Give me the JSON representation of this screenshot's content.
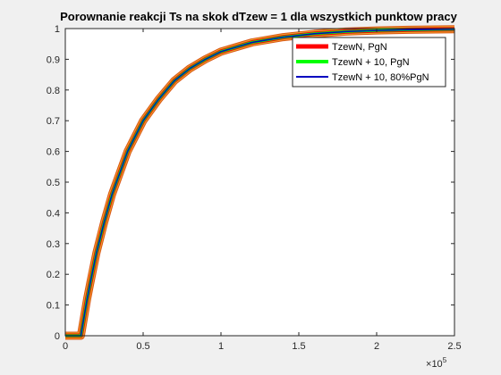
{
  "chart_data": {
    "type": "line",
    "title": "Porownanie reakcji Ts na skok dTzew = 1 dla wszystkich punktow pracy",
    "xlabel": "",
    "ylabel": "",
    "x_exponent_label": "10",
    "x_exponent_power": "5",
    "xlim": [
      0,
      2.5
    ],
    "ylim": [
      0,
      1
    ],
    "x_ticks": [
      "0",
      "0.5",
      "1",
      "1.5",
      "2",
      "2.5"
    ],
    "y_ticks": [
      "0",
      "0.1",
      "0.2",
      "0.3",
      "0.4",
      "0.5",
      "0.6",
      "0.7",
      "0.8",
      "0.9",
      "1"
    ],
    "grid": false,
    "legend_location": "top-right",
    "x": [
      0,
      0.05,
      0.1,
      0.12,
      0.14,
      0.16,
      0.2,
      0.25,
      0.3,
      0.35,
      0.4,
      0.5,
      0.6,
      0.7,
      0.8,
      0.9,
      1.0,
      1.2,
      1.4,
      1.6,
      1.8,
      2.0,
      2.2,
      2.5
    ],
    "series": [
      {
        "name": "TzewN, PgN",
        "color": "#ff0000",
        "values": [
          0,
          0,
          0,
          0.06,
          0.12,
          0.17,
          0.27,
          0.37,
          0.46,
          0.53,
          0.6,
          0.7,
          0.77,
          0.83,
          0.87,
          0.9,
          0.925,
          0.955,
          0.972,
          0.983,
          0.99,
          0.994,
          0.996,
          0.998
        ]
      },
      {
        "name": "TzewN + 10, PgN",
        "color": "#00ff00",
        "values": [
          0,
          0,
          0,
          0.06,
          0.12,
          0.17,
          0.27,
          0.37,
          0.46,
          0.53,
          0.6,
          0.7,
          0.77,
          0.83,
          0.87,
          0.9,
          0.925,
          0.955,
          0.972,
          0.983,
          0.99,
          0.994,
          0.996,
          0.998
        ]
      },
      {
        "name": "TzewN + 10, 80%PgN",
        "color": "#0000c0",
        "values": [
          0,
          0,
          0,
          0.06,
          0.12,
          0.17,
          0.27,
          0.37,
          0.46,
          0.53,
          0.6,
          0.7,
          0.77,
          0.83,
          0.87,
          0.9,
          0.925,
          0.955,
          0.972,
          0.983,
          0.99,
          0.994,
          0.996,
          0.998
        ]
      }
    ],
    "outline_colors": [
      "#d95319",
      "#edb120",
      "#4dbeee"
    ]
  }
}
